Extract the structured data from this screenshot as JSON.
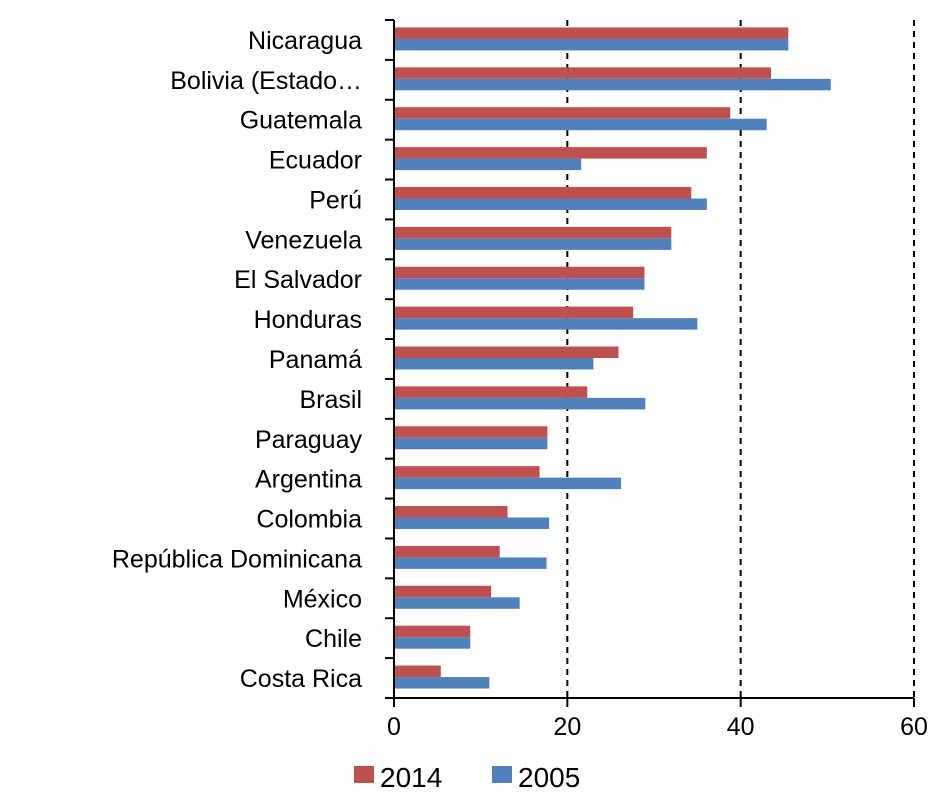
{
  "chart_data": {
    "type": "bar",
    "orientation": "horizontal",
    "categories": [
      "Nicaragua",
      "Bolivia (Estado…",
      "Guatemala",
      "Ecuador",
      "Perú",
      "Venezuela",
      "El Salvador",
      "Honduras",
      "Panamá",
      "Brasil",
      "Paraguay",
      "Argentina",
      "Colombia",
      "República Dominicana",
      "México",
      "Chile",
      "Costa Rica"
    ],
    "series": [
      {
        "name": "2014",
        "color": "#c0504d",
        "values": [
          45.5,
          43.5,
          38.8,
          36.1,
          34.3,
          32.0,
          28.9,
          27.6,
          25.9,
          22.3,
          17.7,
          16.8,
          13.1,
          12.2,
          11.2,
          8.8,
          5.4
        ]
      },
      {
        "name": "2005",
        "color": "#4f81bd",
        "values": [
          45.5,
          50.4,
          43.0,
          21.6,
          36.1,
          32.0,
          28.9,
          35.0,
          23.0,
          29.0,
          17.7,
          26.2,
          17.9,
          17.6,
          14.5,
          8.8,
          11.0
        ]
      }
    ],
    "xlim": [
      0,
      60
    ],
    "xticks": [
      "0",
      "20",
      "40",
      "60"
    ],
    "grid": "dashed vertical lines at 20, 40, 60",
    "legend": "bottom"
  }
}
